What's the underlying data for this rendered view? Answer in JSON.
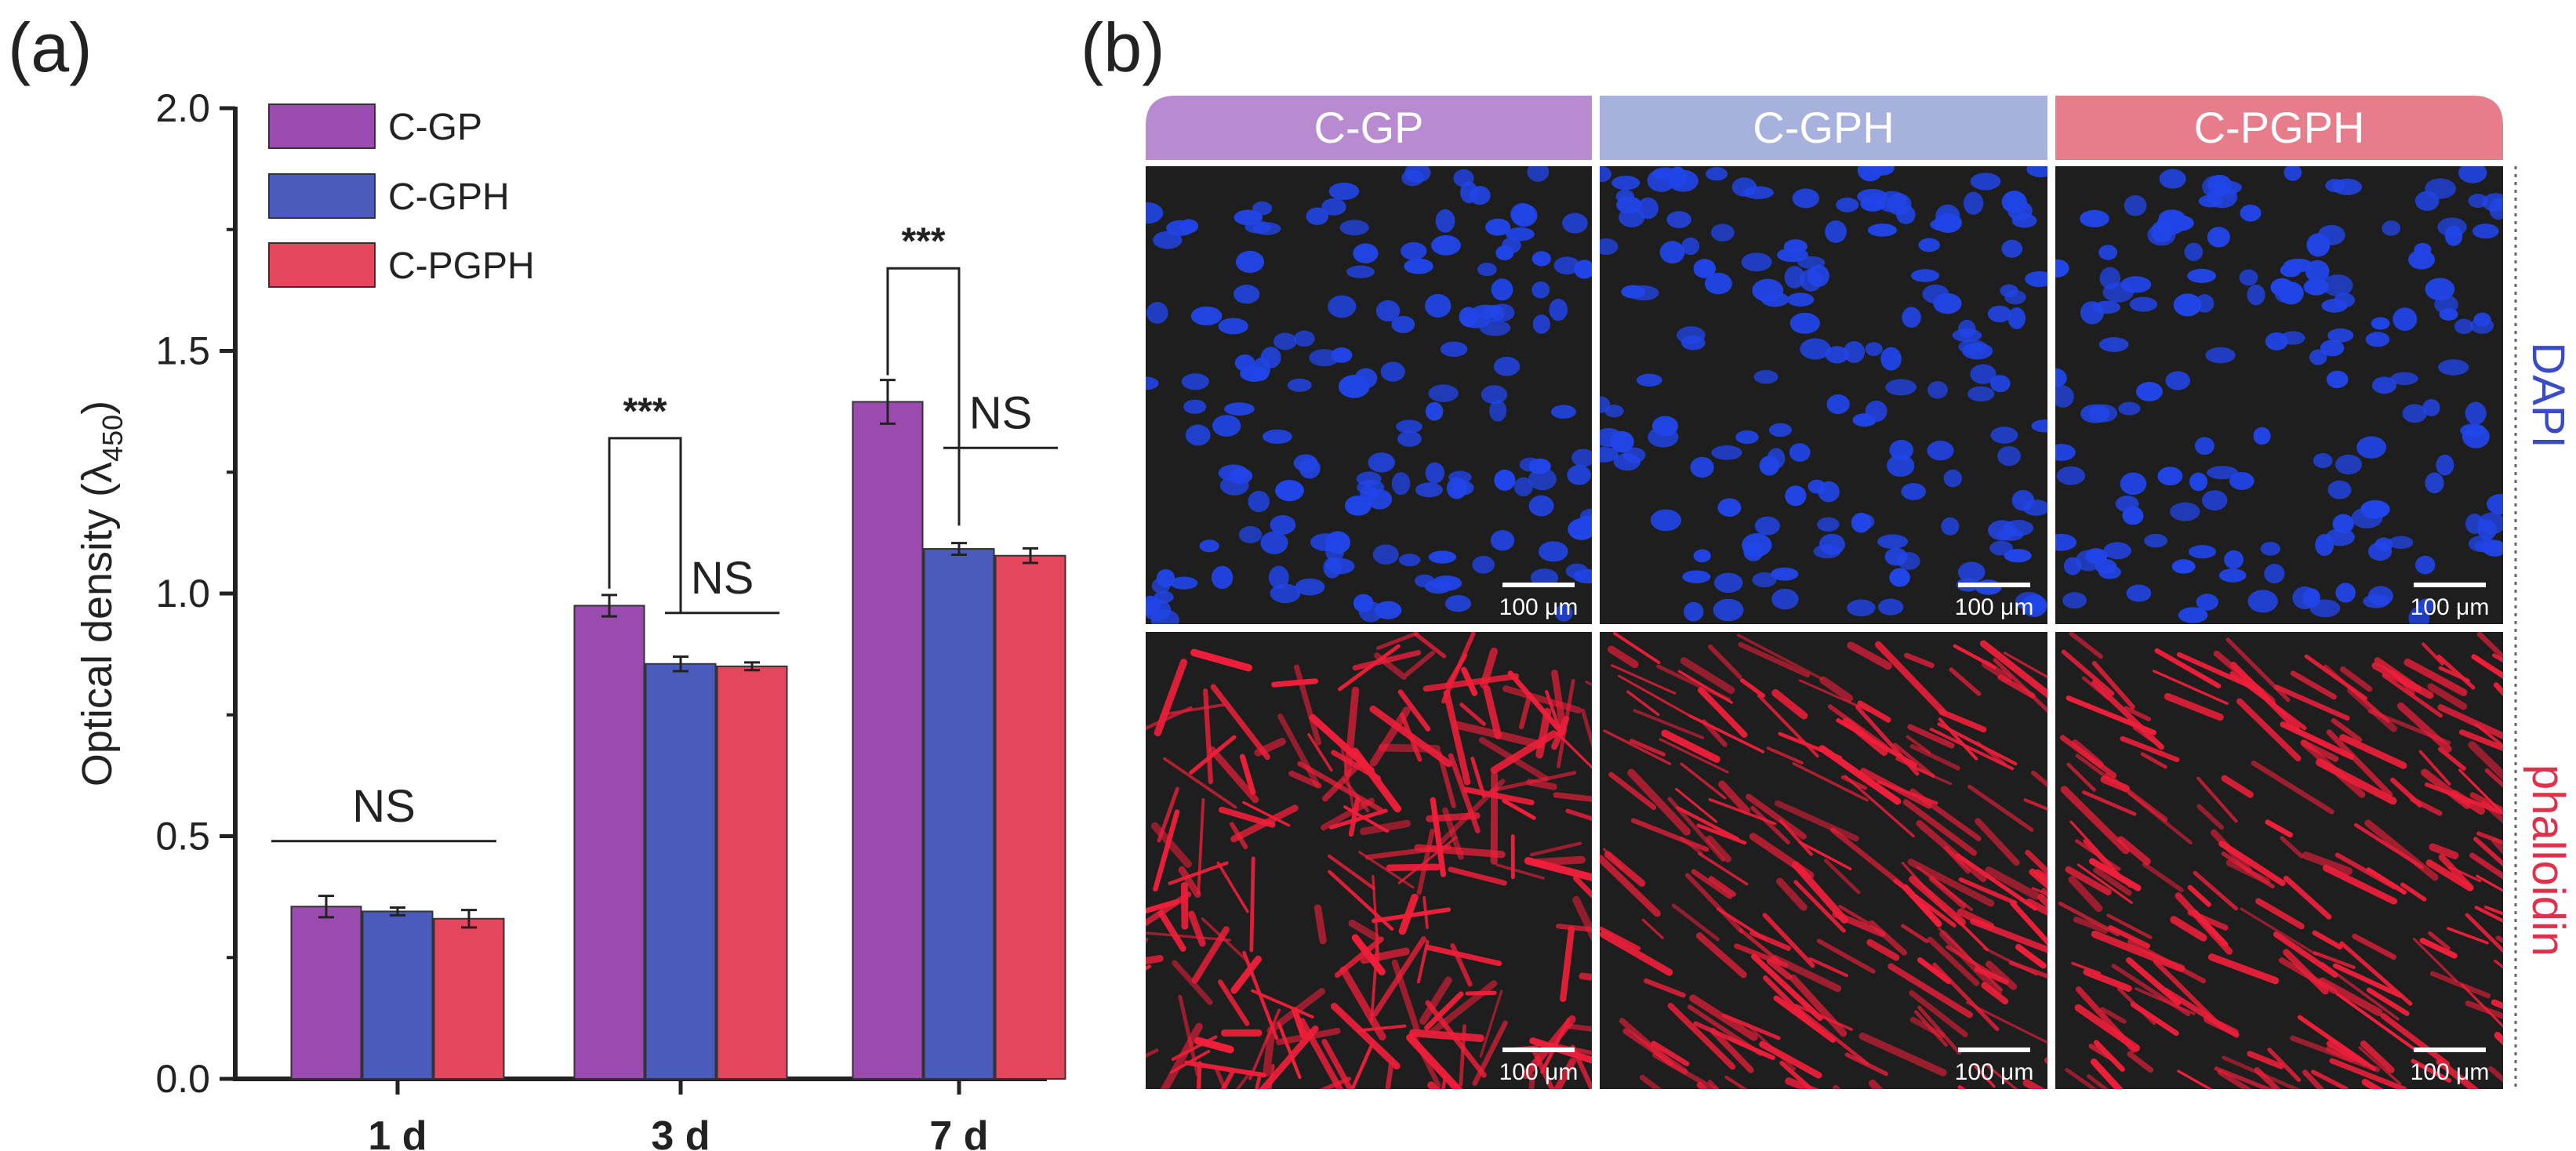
{
  "panels": {
    "a_label": "(a)",
    "b_label": "(b)"
  },
  "chart_data": {
    "type": "bar",
    "title": "",
    "ylabel": "Optical density (λ",
    "ylabel_sub": "450",
    "ylabel_close": ")",
    "xlabel": "",
    "ylim": [
      0,
      2.0
    ],
    "yticks": [
      "0.0",
      "0.5",
      "1.0",
      "1.5",
      "2.0"
    ],
    "grid": false,
    "legend_position": "top-left",
    "categories": [
      "1 d",
      "3 d",
      "7 d"
    ],
    "series": [
      {
        "name": "C-GP",
        "color": "#9b4ab0",
        "values": [
          0.355,
          0.975,
          1.395
        ],
        "errors": [
          0.022,
          0.022,
          0.045
        ]
      },
      {
        "name": "C-GPH",
        "color": "#4a5bbb",
        "values": [
          0.345,
          0.855,
          1.092
        ],
        "errors": [
          0.008,
          0.015,
          0.012
        ]
      },
      {
        "name": "C-PGPH",
        "color": "#e4465d",
        "values": [
          0.33,
          0.85,
          1.078
        ],
        "errors": [
          0.018,
          0.008,
          0.015
        ]
      }
    ],
    "annotations": [
      {
        "text": "NS",
        "group": 0,
        "kind": "line",
        "from": 0,
        "to": 2,
        "y": 0.49,
        "label_y": 0.53
      },
      {
        "text": "***",
        "group": 1,
        "kind": "bracket",
        "from": 0,
        "to": 1,
        "y": 1.32,
        "drop_from": 1.01,
        "drop_to": 0.96,
        "label_y": 1.35
      },
      {
        "text": "NS",
        "group": 1,
        "kind": "line",
        "from": 1,
        "to": 2,
        "y": 0.96,
        "label_y": 1.0
      },
      {
        "text": "***",
        "group": 2,
        "kind": "bracket",
        "from": 0,
        "to": 1,
        "y": 1.67,
        "drop_from": 1.45,
        "drop_to": 1.14,
        "label_y": 1.7
      },
      {
        "text": "NS",
        "group": 2,
        "kind": "line",
        "from": 1,
        "to": 2,
        "y": 1.3,
        "label_y": 1.34
      }
    ]
  },
  "microscopy": {
    "columns": [
      {
        "label": "C-GP",
        "color": "#b88ad0"
      },
      {
        "label": "C-GPH",
        "color": "#a6b1de"
      },
      {
        "label": "C-PGPH",
        "color": "#e77d8b"
      }
    ],
    "rows": [
      {
        "label": "DAPI",
        "color": "#3a4bc4",
        "cell_color": "#2145e8"
      },
      {
        "label": "phalloidin",
        "color": "#e0314c",
        "cell_color": "#f01f3a"
      }
    ],
    "scale_bar": "100 μm"
  }
}
